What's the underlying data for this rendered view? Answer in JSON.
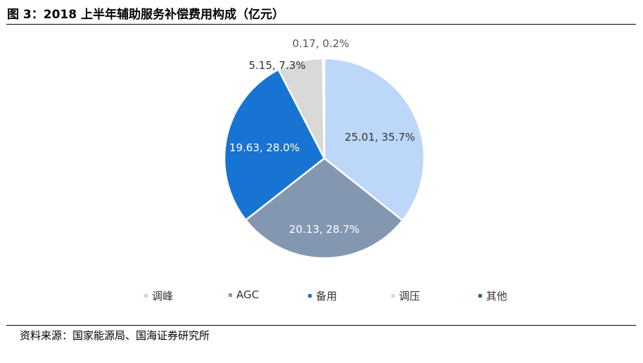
{
  "header": {
    "title": "图 3：2018 上半年辅助服务补偿费用构成（亿元）"
  },
  "footer": {
    "source": "资料来源：国家能源局、国海证券研究所"
  },
  "chart_data": {
    "type": "pie",
    "title": "",
    "start_angle_deg": 0,
    "direction": "clockwise",
    "legend_position": "bottom",
    "slices": [
      {
        "name": "调峰",
        "value": 25.01,
        "percent": "35.7%",
        "label": "25.01, 35.7%",
        "color": "#BDD7F8"
      },
      {
        "name": "AGC",
        "value": 20.13,
        "percent": "28.7%",
        "label": "20.13, 28.7%",
        "color": "#8497B0"
      },
      {
        "name": "备用",
        "value": 19.63,
        "percent": "28.0%",
        "label": "19.63, 28.0%",
        "color": "#1874D2"
      },
      {
        "name": "调压",
        "value": 5.15,
        "percent": "7.3%",
        "label": "5.15, 7.3%",
        "color": "#D9D9D9"
      },
      {
        "name": "其他",
        "value": 0.17,
        "percent": "0.2%",
        "label": "0.17, 0.2%",
        "color": "#2E5F9B"
      }
    ]
  }
}
